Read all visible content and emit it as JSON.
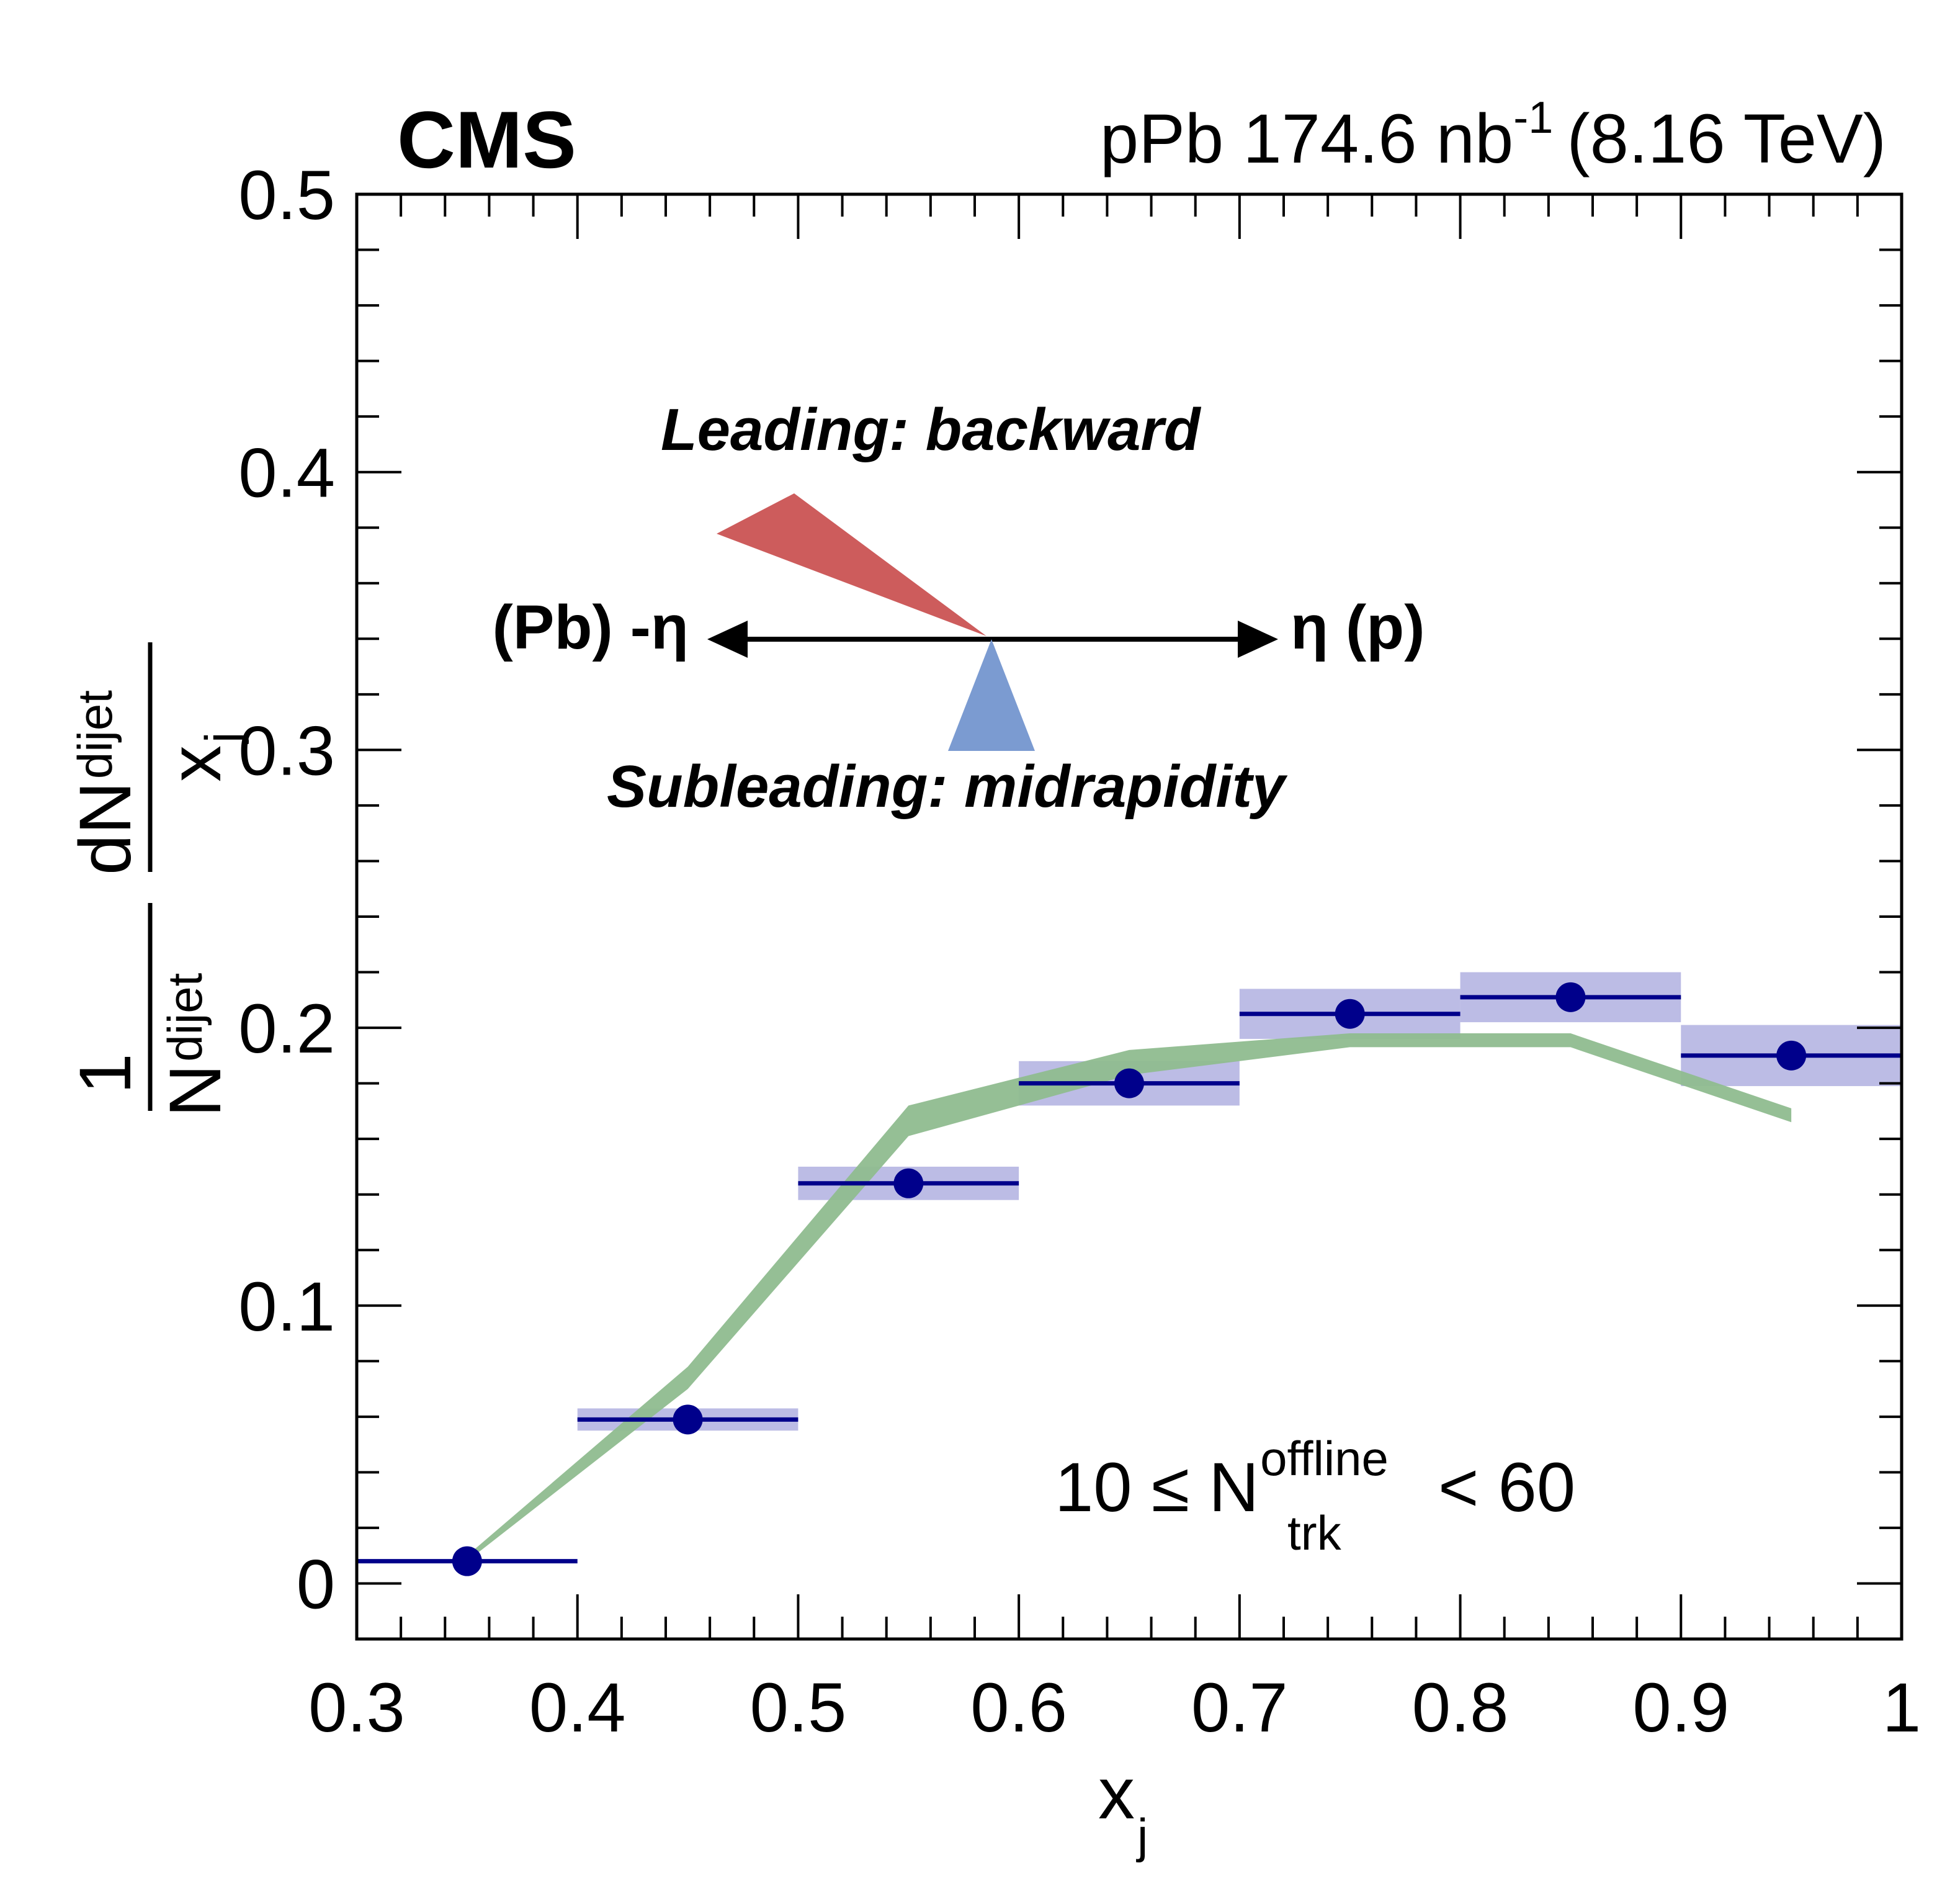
{
  "header": {
    "experiment": "CMS",
    "lumi_prefix": "pPb 174.6 nb",
    "lumi_exp": "-1",
    "energy": "(8.16 TeV)"
  },
  "annotations": {
    "leading": "Leading: backward",
    "subleading": "Subleading: midrapidity",
    "left_eta": "(Pb) -η",
    "right_eta": "η (p)",
    "selection": {
      "pre": "10 ≤ N",
      "sup": "offline",
      "sub": "trk",
      "post": "< 60"
    },
    "leading_color": "#cd5c5c",
    "subleading_color": "#7b9bd1"
  },
  "chart_data": {
    "type": "scatter",
    "xlabel_main": "x",
    "xlabel_sub": "j",
    "ylabel": {
      "one": "1",
      "N": "N",
      "N_sub": "dijet",
      "dN": "dN",
      "dN_sub": "dijet",
      "x": "x",
      "x_sub": "j"
    },
    "xlim": [
      0.3,
      1.0
    ],
    "ylim": [
      -0.02,
      0.5
    ],
    "x_ticks": [
      0.3,
      0.4,
      0.5,
      0.6,
      0.7,
      0.8,
      0.9,
      1.0
    ],
    "x_tick_labels": [
      "0.3",
      "0.4",
      "0.5",
      "0.6",
      "0.7",
      "0.8",
      "0.9",
      "1"
    ],
    "y_ticks": [
      0,
      0.1,
      0.2,
      0.3,
      0.4,
      0.5
    ],
    "y_tick_labels": [
      "0",
      "0.1",
      "0.2",
      "0.3",
      "0.4",
      "0.5"
    ],
    "series": [
      {
        "kind": "data",
        "color": "#00008b",
        "syst_color": "#b0b0e0",
        "points": [
          {
            "x": 0.35,
            "y": 0.008,
            "xlo": 0.3,
            "xhi": 0.4,
            "syst": 0.0
          },
          {
            "x": 0.45,
            "y": 0.059,
            "xlo": 0.4,
            "xhi": 0.5,
            "syst": 0.004
          },
          {
            "x": 0.55,
            "y": 0.144,
            "xlo": 0.5,
            "xhi": 0.6,
            "syst": 0.006
          },
          {
            "x": 0.65,
            "y": 0.18,
            "xlo": 0.6,
            "xhi": 0.7,
            "syst": 0.008
          },
          {
            "x": 0.75,
            "y": 0.205,
            "xlo": 0.7,
            "xhi": 0.8,
            "syst": 0.009
          },
          {
            "x": 0.85,
            "y": 0.211,
            "xlo": 0.8,
            "xhi": 0.9,
            "syst": 0.009
          },
          {
            "x": 0.95,
            "y": 0.19,
            "xlo": 0.9,
            "xhi": 1.0,
            "syst": 0.011
          }
        ]
      },
      {
        "kind": "band",
        "color": "#8fbc8f",
        "x": [
          0.35,
          0.45,
          0.55,
          0.65,
          0.75,
          0.85,
          0.95
        ],
        "lo": [
          0.008,
          0.07,
          0.161,
          0.183,
          0.193,
          0.193,
          0.166
        ],
        "hi": [
          0.01,
          0.078,
          0.172,
          0.192,
          0.198,
          0.198,
          0.171
        ]
      }
    ]
  }
}
